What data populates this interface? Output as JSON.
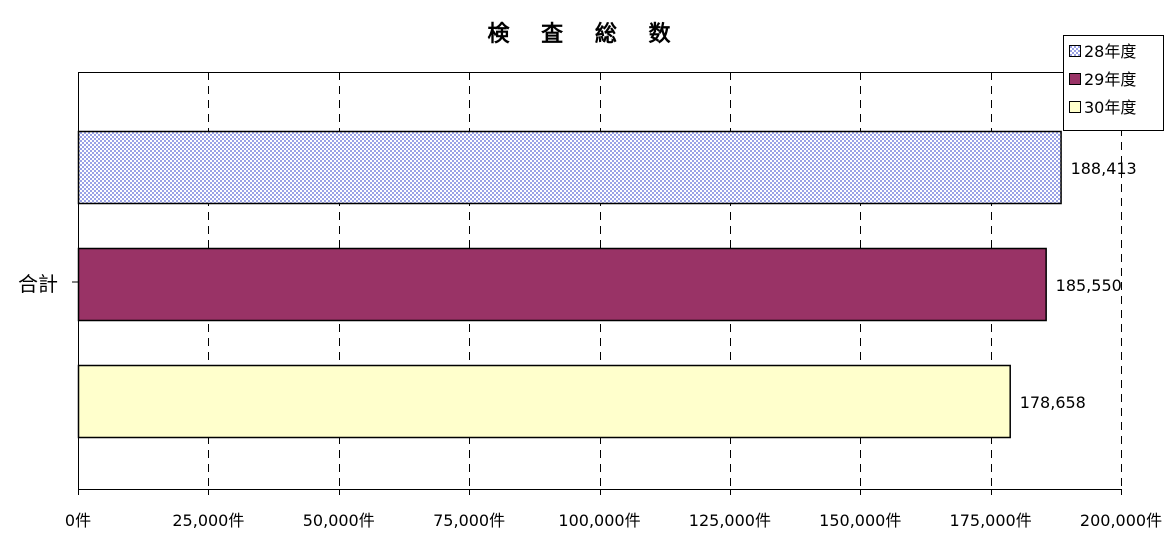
{
  "chart_data": {
    "type": "bar",
    "orientation": "horizontal",
    "title": "検 査 総 数",
    "categories": [
      "合計"
    ],
    "series": [
      {
        "name": "28年度",
        "values": [
          188413
        ],
        "value_label": "188,413",
        "color": "#c7cdf3",
        "pattern": "checker"
      },
      {
        "name": "29年度",
        "values": [
          185550
        ],
        "value_label": "185,550",
        "color": "#993366"
      },
      {
        "name": "30年度",
        "values": [
          178658
        ],
        "value_label": "178,658",
        "color": "#ffffcc"
      }
    ],
    "x_ticks": [
      {
        "value": 0,
        "label": "0件"
      },
      {
        "value": 25000,
        "label": "25,000件"
      },
      {
        "value": 50000,
        "label": "50,000件"
      },
      {
        "value": 75000,
        "label": "75,000件"
      },
      {
        "value": 100000,
        "label": "100,000件"
      },
      {
        "value": 125000,
        "label": "125,000件"
      },
      {
        "value": 150000,
        "label": "150,000件"
      },
      {
        "value": 175000,
        "label": "175,000件"
      },
      {
        "value": 200000,
        "label": "200,000件"
      }
    ],
    "xlim": [
      0,
      200000
    ],
    "grid": "vertical-dashed",
    "legend_position": "top-right",
    "xlabel": "",
    "ylabel": ""
  }
}
